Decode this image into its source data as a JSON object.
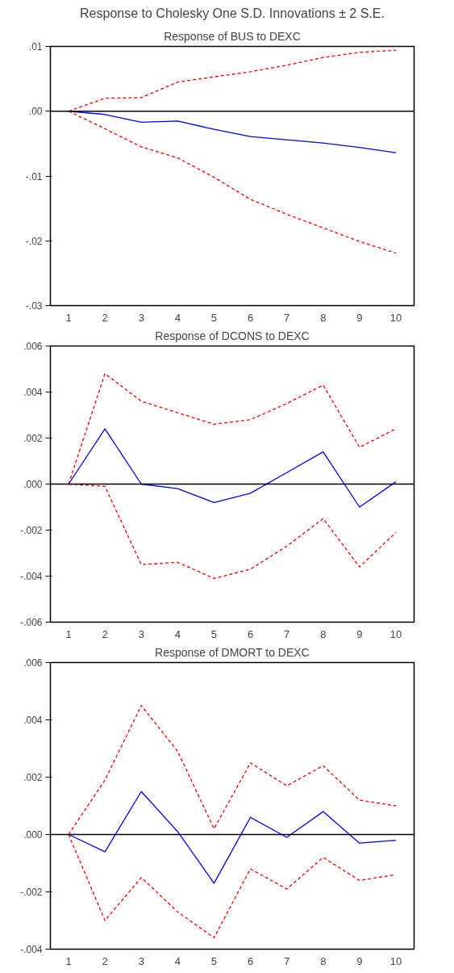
{
  "chart_data": [
    {
      "type": "line",
      "title": "Response of BUS to DEXC",
      "annotations": [
        "Response to Cholesky One S.D. Innovations ± 2 S.E."
      ],
      "categories": [
        "1",
        "2",
        "3",
        "4",
        "5",
        "6",
        "7",
        "8",
        "9",
        "10"
      ],
      "series": [
        {
          "color": "#0000ff",
          "line_style": "solid",
          "values": [
            0,
            -0.0005,
            -0.0017,
            -0.0015,
            -0.0028,
            -0.0039,
            -0.0044,
            -0.0049,
            -0.0056,
            -0.0064
          ]
        },
        {
          "color": "#ff0000",
          "line_style": "dashed",
          "values": [
            0,
            0.002,
            0.0021,
            0.0045,
            0.0053,
            0.0061,
            0.0071,
            0.0083,
            0.0091,
            0.0094
          ]
        },
        {
          "color": "#ff0000",
          "line_style": "dashed",
          "values": [
            0,
            -0.0027,
            -0.0055,
            -0.0072,
            -0.0102,
            -0.0136,
            -0.0159,
            -0.018,
            -0.0201,
            -0.0219
          ]
        }
      ],
      "ylim": [
        -0.03,
        0.01
      ],
      "yticks": [
        {
          "value": -0.03,
          "label": "-.03"
        },
        {
          "value": -0.02,
          "label": "-.02"
        },
        {
          "value": -0.01,
          "label": "-.01"
        },
        {
          "value": 0,
          "label": ".00"
        },
        {
          "value": 0.01,
          "label": ".01"
        }
      ],
      "ref_lines": [
        {
          "axis": "y",
          "value": 0,
          "color": "#000000"
        }
      ],
      "grid": false
    },
    {
      "type": "line",
      "title": "Response of DCONS to DEXC",
      "categories": [
        "1",
        "2",
        "3",
        "4",
        "5",
        "6",
        "7",
        "8",
        "9",
        "10"
      ],
      "series": [
        {
          "color": "#0000ff",
          "line_style": "solid",
          "values": [
            0,
            0.0024,
            0.0,
            -0.0002,
            -0.0008,
            -0.0004,
            0.0005,
            0.0014,
            -0.001,
            0.0001
          ]
        },
        {
          "color": "#ff0000",
          "line_style": "dashed",
          "values": [
            0,
            0.0048,
            0.0036,
            0.0031,
            0.0026,
            0.0028,
            0.0035,
            0.0043,
            0.0016,
            0.0024
          ]
        },
        {
          "color": "#ff0000",
          "line_style": "dashed",
          "values": [
            0,
            -0.0001,
            -0.0035,
            -0.0034,
            -0.0041,
            -0.0037,
            -0.0027,
            -0.0015,
            -0.0036,
            -0.0021
          ]
        }
      ],
      "ylim": [
        -0.006,
        0.006
      ],
      "yticks": [
        {
          "value": -0.006,
          "label": "-.006"
        },
        {
          "value": -0.004,
          "label": "-.004"
        },
        {
          "value": -0.002,
          "label": "-.002"
        },
        {
          "value": 0,
          "label": ".000"
        },
        {
          "value": 0.002,
          "label": ".002"
        },
        {
          "value": 0.004,
          "label": ".004"
        },
        {
          "value": 0.006,
          "label": ".006"
        }
      ],
      "ref_lines": [
        {
          "axis": "y",
          "value": 0,
          "color": "#000000"
        }
      ],
      "grid": false
    },
    {
      "type": "line",
      "title": "Response of DMORT to DEXC",
      "categories": [
        "1",
        "2",
        "3",
        "4",
        "5",
        "6",
        "7",
        "8",
        "9",
        "10"
      ],
      "series": [
        {
          "color": "#0000ff",
          "line_style": "solid",
          "values": [
            0,
            -0.0006,
            0.0015,
            0.0001,
            -0.0017,
            0.0006,
            -0.0001,
            0.0008,
            -0.0003,
            -0.0002
          ]
        },
        {
          "color": "#ff0000",
          "line_style": "dashed",
          "values": [
            0,
            0.0019,
            0.0045,
            0.0029,
            0.0002,
            0.0025,
            0.0017,
            0.0024,
            0.0012,
            0.001
          ]
        },
        {
          "color": "#ff0000",
          "line_style": "dashed",
          "values": [
            0,
            -0.003,
            -0.0015,
            -0.0027,
            -0.0036,
            -0.0012,
            -0.0019,
            -0.0008,
            -0.0016,
            -0.0014
          ]
        }
      ],
      "ylim": [
        -0.004,
        0.006
      ],
      "yticks": [
        {
          "value": -0.004,
          "label": "-.004"
        },
        {
          "value": -0.002,
          "label": "-.002"
        },
        {
          "value": 0,
          "label": ".000"
        },
        {
          "value": 0.002,
          "label": ".002"
        },
        {
          "value": 0.004,
          "label": ".004"
        },
        {
          "value": 0.006,
          "label": ".006"
        }
      ],
      "ref_lines": [
        {
          "axis": "y",
          "value": 0,
          "color": "#000000"
        }
      ],
      "grid": false
    }
  ]
}
